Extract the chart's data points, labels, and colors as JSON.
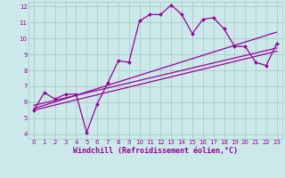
{
  "xlabel": "Windchill (Refroidissement éolien,°C)",
  "background_color": "#cce9e9",
  "line_color": "#990099",
  "grid_color": "#aacccc",
  "spine_color": "#9999bb",
  "xlim": [
    -0.5,
    23.5
  ],
  "ylim": [
    3.7,
    12.3
  ],
  "xticks": [
    0,
    1,
    2,
    3,
    4,
    5,
    6,
    7,
    8,
    9,
    10,
    11,
    12,
    13,
    14,
    15,
    16,
    17,
    18,
    19,
    20,
    21,
    22,
    23
  ],
  "yticks": [
    4,
    5,
    6,
    7,
    8,
    9,
    10,
    11,
    12
  ],
  "series1_x": [
    0,
    1,
    2,
    3,
    4,
    5,
    6,
    7,
    8,
    9,
    10,
    11,
    12,
    13,
    14,
    15,
    16,
    17,
    18,
    19,
    20,
    21,
    22,
    23
  ],
  "series1_y": [
    5.5,
    6.6,
    6.2,
    6.5,
    6.5,
    4.1,
    5.9,
    7.2,
    8.6,
    8.5,
    11.1,
    11.5,
    11.5,
    12.1,
    11.5,
    10.3,
    11.2,
    11.3,
    10.6,
    9.5,
    9.5,
    8.5,
    8.3,
    9.7
  ],
  "series2_x": [
    0,
    23
  ],
  "series2_y": [
    5.6,
    10.4
  ],
  "series3_x": [
    0,
    23
  ],
  "series3_y": [
    5.8,
    9.4
  ],
  "series4_x": [
    0,
    23
  ],
  "series4_y": [
    5.5,
    9.2
  ],
  "tick_fontsize": 5.0,
  "xlabel_fontsize": 6.0
}
